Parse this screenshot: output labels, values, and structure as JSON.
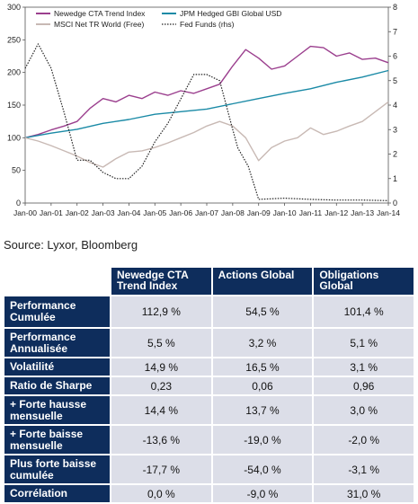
{
  "chart_data": {
    "type": "line",
    "x_ticks": [
      "Jan-00",
      "Jan-01",
      "Jan-02",
      "Jan-03",
      "Jan-04",
      "Jan-05",
      "Jan-06",
      "Jan-07",
      "Jan-08",
      "Jan-09",
      "Jan-10",
      "Jan-11",
      "Jan-12",
      "Jan-13",
      "Jan-14"
    ],
    "y_left_ticks": [
      "0",
      "50",
      "100",
      "150",
      "200",
      "250",
      "300"
    ],
    "y_left_range": [
      0,
      300
    ],
    "y_right_ticks": [
      "0",
      "1",
      "2",
      "3",
      "4",
      "5",
      "6",
      "7",
      "8"
    ],
    "y_right_range": [
      0,
      8
    ],
    "grid": false,
    "legend_position": "top-left",
    "series": [
      {
        "name": "Newedge CTA Trend Index",
        "color": "#9b3f8e",
        "style": "solid",
        "axis": "left",
        "x": [
          2000,
          2000.5,
          2001,
          2001.5,
          2002,
          2002.5,
          2003,
          2003.5,
          2004,
          2004.5,
          2005,
          2005.5,
          2006,
          2006.5,
          2007,
          2007.5,
          2008,
          2008.5,
          2009,
          2009.5,
          2010,
          2010.5,
          2011,
          2011.5,
          2012,
          2012.5,
          2013,
          2013.5,
          2014
        ],
        "values": [
          100,
          105,
          112,
          118,
          125,
          145,
          160,
          155,
          165,
          160,
          170,
          165,
          172,
          168,
          175,
          182,
          210,
          235,
          222,
          205,
          210,
          225,
          240,
          238,
          225,
          230,
          220,
          222,
          215
        ]
      },
      {
        "name": "JPM Hedged GBI Global USD",
        "color": "#1a8aa6",
        "style": "solid",
        "axis": "left",
        "x": [
          2000,
          2001,
          2002,
          2003,
          2004,
          2005,
          2006,
          2007,
          2008,
          2009,
          2010,
          2011,
          2012,
          2013,
          2014
        ],
        "values": [
          100,
          107,
          113,
          122,
          128,
          136,
          140,
          144,
          152,
          160,
          168,
          175,
          185,
          193,
          203
        ]
      },
      {
        "name": "MSCI Net TR World (Free)",
        "color": "#c8b9b4",
        "style": "solid",
        "axis": "left",
        "x": [
          2000,
          2000.5,
          2001,
          2001.5,
          2002,
          2002.5,
          2003,
          2003.5,
          2004,
          2004.5,
          2005,
          2005.5,
          2006,
          2006.5,
          2007,
          2007.5,
          2008,
          2008.5,
          2009,
          2009.5,
          2010,
          2010.5,
          2011,
          2011.5,
          2012,
          2012.5,
          2013,
          2013.5,
          2014
        ],
        "values": [
          100,
          95,
          88,
          80,
          72,
          62,
          55,
          68,
          78,
          80,
          85,
          92,
          100,
          108,
          118,
          125,
          118,
          100,
          65,
          85,
          95,
          100,
          115,
          105,
          110,
          118,
          125,
          140,
          155
        ]
      },
      {
        "name": "Fed Funds (rhs)",
        "color": "#222222",
        "style": "dotted",
        "axis": "right",
        "x": [
          2000,
          2000.5,
          2001,
          2001.5,
          2002,
          2002.5,
          2003,
          2003.5,
          2004,
          2004.5,
          2005,
          2005.5,
          2006,
          2006.5,
          2007,
          2007.5,
          2008,
          2008.2,
          2008.6,
          2009,
          2010,
          2011,
          2012,
          2013,
          2014
        ],
        "values": [
          5.5,
          6.5,
          5.5,
          3.7,
          1.75,
          1.75,
          1.25,
          1.0,
          1.0,
          1.5,
          2.5,
          3.25,
          4.25,
          5.25,
          5.25,
          5.0,
          3.0,
          2.25,
          1.5,
          0.15,
          0.2,
          0.15,
          0.12,
          0.12,
          0.1
        ]
      }
    ]
  },
  "source_text": "Source: Lyxor, Bloomberg",
  "table": {
    "headers": [
      "Newedge CTA Trend Index",
      "Actions Global",
      "Obligations Global"
    ],
    "rows": [
      {
        "label": "Performance Cumulée",
        "values": [
          "112,9 %",
          "54,5 %",
          "101,4 %"
        ]
      },
      {
        "label": "Performance Annualisée",
        "values": [
          "5,5 %",
          "3,2 %",
          "5,1 %"
        ]
      },
      {
        "label": "Volatilité",
        "values": [
          "14,9 %",
          "16,5 %",
          "3,1 %"
        ]
      },
      {
        "label": "Ratio de Sharpe",
        "values": [
          "0,23",
          "0,06",
          "0,96"
        ]
      },
      {
        "label": "+ Forte hausse mensuelle",
        "values": [
          "14,4 %",
          "13,7 %",
          "3,0 %"
        ]
      },
      {
        "label": "+ Forte baisse mensuelle",
        "values": [
          "-13,6 %",
          "-19,0 %",
          "-2,0 %"
        ]
      },
      {
        "label": "Plus forte baisse cumulée",
        "values": [
          "-17,7 %",
          "-54,0 %",
          "-3,1 %"
        ]
      },
      {
        "label": "Corrélation",
        "values": [
          "0,0 %",
          "-9,0 %",
          "31,0 %"
        ]
      }
    ]
  }
}
